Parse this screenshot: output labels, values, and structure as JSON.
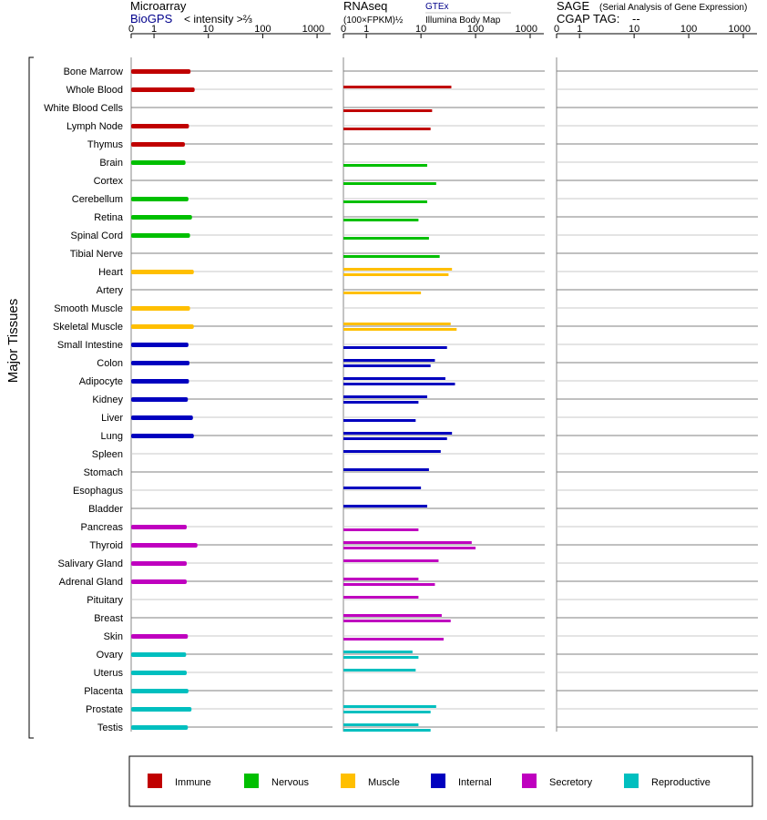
{
  "panels": {
    "microarray": {
      "title": "Microarray",
      "source_link": "BioGPS",
      "scale_label": "< intensity >⅔",
      "ticks": [
        "0",
        "1",
        "10",
        "100",
        "1000"
      ]
    },
    "rnaseq": {
      "title": "RNAseq",
      "scale_label": "(100×FPKM)½",
      "gtex_link": "GTEx",
      "body_map_label": "Illumina Body Map",
      "ticks": [
        "0",
        "1",
        "10",
        "100",
        "1000"
      ]
    },
    "sage": {
      "title": "SAGE",
      "subtitle": "(Serial Analysis of Gene Expression)",
      "tag_label": "CGAP TAG:",
      "tag_value": "--",
      "ticks": [
        "0",
        "1",
        "10",
        "100",
        "1000"
      ]
    }
  },
  "side_label": "Major Tissues",
  "colors": {
    "Immune": "#c00000",
    "Nervous": "#00bf00",
    "Muscle": "#ffbf00",
    "Internal": "#0000bf",
    "Secretory": "#bf00bf",
    "Reproductive": "#00bfbf"
  },
  "legend": [
    "Immune",
    "Nervous",
    "Muscle",
    "Internal",
    "Secretory",
    "Reproductive"
  ],
  "chart_data": {
    "type": "bar",
    "orientation": "horizontal",
    "x_scale": "compressed-log (0, 1, 10, 100, 1000)",
    "categories": [
      "Bone Marrow",
      "Whole Blood",
      "White Blood Cells",
      "Lymph Node",
      "Thymus",
      "Brain",
      "Cortex",
      "Cerebellum",
      "Retina",
      "Spinal Cord",
      "Tibial Nerve",
      "Heart",
      "Artery",
      "Smooth Muscle",
      "Skeletal Muscle",
      "Small Intestine",
      "Colon",
      "Adipocyte",
      "Kidney",
      "Liver",
      "Lung",
      "Spleen",
      "Stomach",
      "Esophagus",
      "Bladder",
      "Pancreas",
      "Thyroid",
      "Salivary Gland",
      "Adrenal Gland",
      "Pituitary",
      "Breast",
      "Skin",
      "Ovary",
      "Uterus",
      "Placenta",
      "Prostate",
      "Testis"
    ],
    "groups": [
      "Immune",
      "Immune",
      "Immune",
      "Immune",
      "Immune",
      "Nervous",
      "Nervous",
      "Nervous",
      "Nervous",
      "Nervous",
      "Nervous",
      "Muscle",
      "Muscle",
      "Muscle",
      "Muscle",
      "Internal",
      "Internal",
      "Internal",
      "Internal",
      "Internal",
      "Internal",
      "Internal",
      "Internal",
      "Internal",
      "Internal",
      "Secretory",
      "Secretory",
      "Secretory",
      "Secretory",
      "Secretory",
      "Secretory",
      "Secretory",
      "Reproductive",
      "Reproductive",
      "Reproductive",
      "Reproductive",
      "Reproductive"
    ],
    "microarray": [
      4.7,
      5.6,
      null,
      4.4,
      3.7,
      3.8,
      null,
      4.3,
      5.0,
      4.6,
      null,
      5.4,
      null,
      4.6,
      5.4,
      4.3,
      4.5,
      4.4,
      4.2,
      5.2,
      5.4,
      null,
      null,
      null,
      null,
      4.0,
      6.3,
      4.0,
      4.0,
      null,
      null,
      4.2,
      3.9,
      4.0,
      4.3,
      4.9,
      4.2
    ],
    "rnaseq_gtex": [
      null,
      36,
      null,
      null,
      null,
      null,
      null,
      null,
      null,
      null,
      null,
      37,
      null,
      null,
      35,
      null,
      18,
      28,
      13,
      null,
      37,
      23,
      14,
      10,
      13,
      null,
      85,
      21,
      9,
      9,
      24,
      null,
      7,
      8,
      null,
      19,
      9
    ],
    "rnaseq_bodymap": [
      null,
      null,
      16,
      15,
      null,
      13,
      19,
      13,
      9,
      14,
      22,
      32,
      10,
      null,
      45,
      30,
      15,
      42,
      9,
      8,
      30,
      null,
      null,
      null,
      null,
      9,
      100,
      null,
      18,
      null,
      35,
      26,
      9,
      null,
      null,
      15,
      15
    ],
    "sage": []
  }
}
